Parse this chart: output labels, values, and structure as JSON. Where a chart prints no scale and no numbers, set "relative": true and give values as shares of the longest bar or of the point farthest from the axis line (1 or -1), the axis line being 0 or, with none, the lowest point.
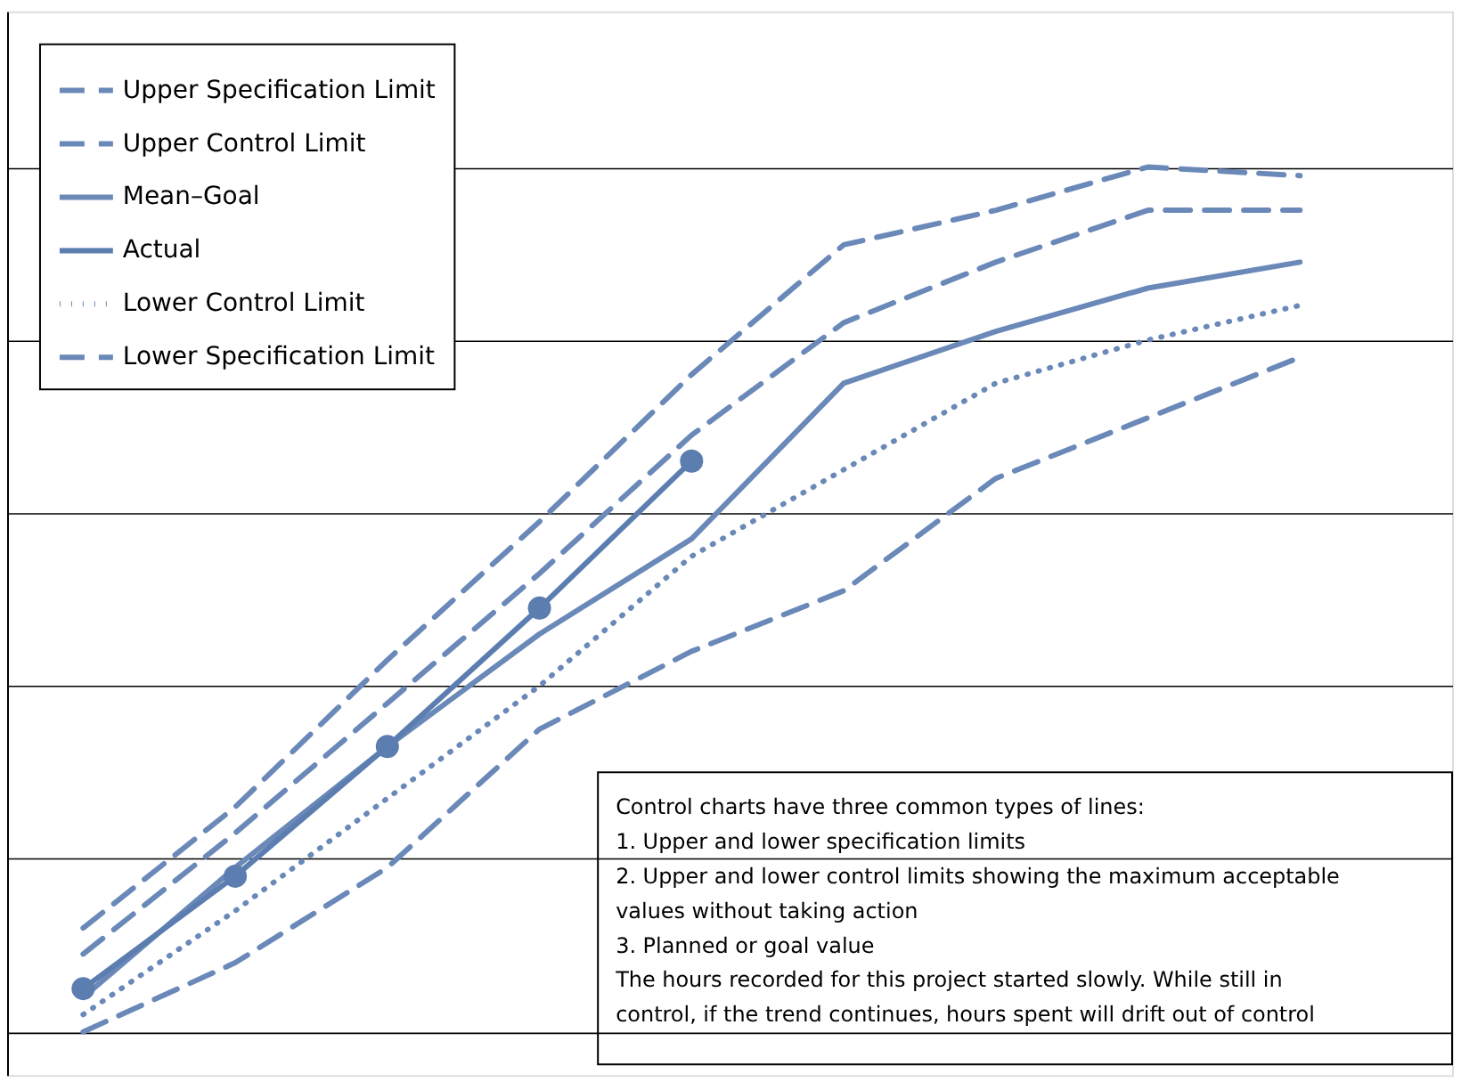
{
  "chart_data": {
    "type": "line",
    "relative": true,
    "categories": [
      null,
      null,
      null,
      null,
      null,
      null,
      null,
      null,
      null
    ],
    "series": [
      {
        "name": "Upper Specification Limit",
        "color": "#6a89b8",
        "line_style": "dashed",
        "marker": "none",
        "values": [
          0.12,
          0.26,
          0.43,
          0.59,
          0.76,
          0.91,
          0.95,
          1.0,
          0.99
        ]
      },
      {
        "name": "Upper Control Limit",
        "color": "#6a89b8",
        "line_style": "dashed",
        "marker": "none",
        "values": [
          0.09,
          0.23,
          0.38,
          0.53,
          0.69,
          0.82,
          0.89,
          0.95,
          0.95
        ]
      },
      {
        "name": "Mean–Goal",
        "color": "#6a89b8",
        "line_style": "solid",
        "marker": "none",
        "values": [
          0.04,
          0.19,
          0.33,
          0.46,
          0.57,
          0.75,
          0.81,
          0.86,
          0.89
        ]
      },
      {
        "name": "Actual",
        "color": "#5b7db0",
        "line_style": "solid",
        "marker": "circle",
        "values": [
          0.05,
          0.18,
          0.33,
          0.49,
          0.66,
          null,
          null,
          null,
          null
        ]
      },
      {
        "name": "Lower Control Limit",
        "color": "#6a89b8",
        "line_style": "dotted",
        "marker": "none",
        "values": [
          0.02,
          0.14,
          0.27,
          0.4,
          0.55,
          0.65,
          0.75,
          0.8,
          0.84
        ]
      },
      {
        "name": "Lower Specification Limit",
        "color": "#6a89b8",
        "line_style": "dashed",
        "marker": "none",
        "values": [
          0.0,
          0.08,
          0.19,
          0.35,
          0.44,
          0.51,
          0.64,
          0.71,
          0.78
        ]
      }
    ],
    "grid": "y",
    "legend": "top left",
    "annotations": [
      "Control charts have three common types of lines:",
      "1. Upper and lower specification limits",
      "2. Upper and lower control limits showing the maximum acceptable values without taking action",
      "3. Planned or goal value",
      "The hours recorded for this project started slowly. While still in control, if the trend continues, hours spent will drift out of control"
    ]
  }
}
